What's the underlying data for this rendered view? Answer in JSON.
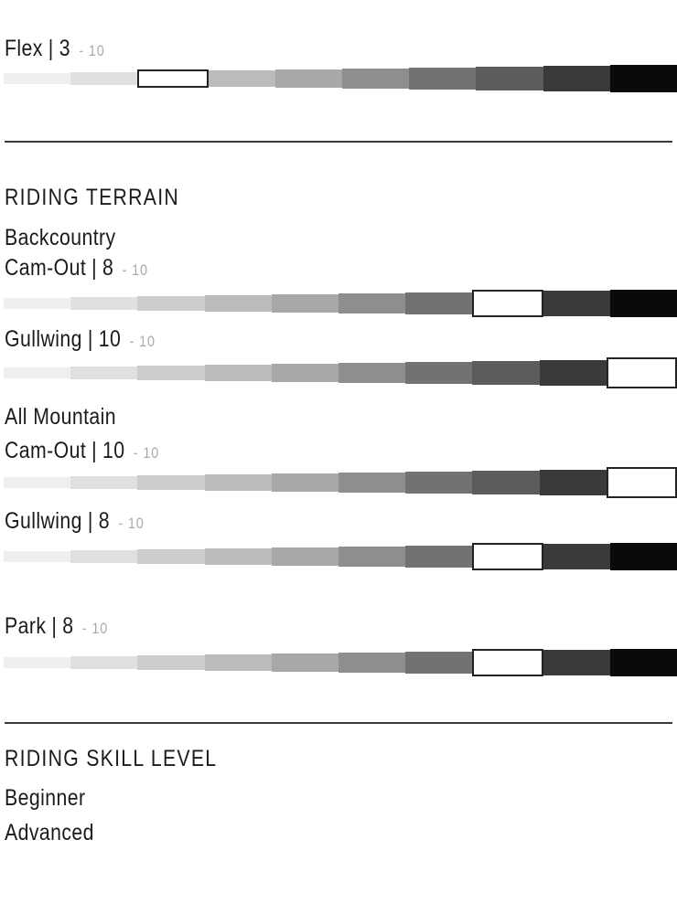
{
  "labels": {
    "terrain_heading": "RIDING TERRAIN",
    "skill_heading": "RIDING SKILL LEVEL",
    "backcountry": "Backcountry",
    "all_mountain": "All Mountain",
    "skill_levels": [
      "Beginner",
      "Advanced"
    ],
    "separator": "|",
    "scale_suffix": "- 10"
  },
  "colors": {
    "text": "#1b1b1b",
    "muted": "#ababab",
    "divider": "#3a3a3a",
    "highlight_fill": "#ffffff",
    "highlight_border": "#232323"
  },
  "bar": {
    "segments": 10,
    "palette": [
      "#efefef",
      "#e0e0e0",
      "#cdcdcd",
      "#bbbbbb",
      "#a8a8a8",
      "#8e8e8e",
      "#727272",
      "#5c5c5c",
      "#3a3a38",
      "#0a0a08"
    ]
  },
  "chart_data": {
    "type": "bar",
    "title": "",
    "scale_min": 1,
    "scale_max": 10,
    "legend_position": "none",
    "metrics": [
      {
        "group": "",
        "label": "Flex",
        "value": 3
      },
      {
        "group": "Backcountry",
        "label": "Cam-Out",
        "value": 8
      },
      {
        "group": "Backcountry",
        "label": "Gullwing",
        "value": 10
      },
      {
        "group": "All Mountain",
        "label": "Cam-Out",
        "value": 10
      },
      {
        "group": "All Mountain",
        "label": "Gullwing",
        "value": 8
      },
      {
        "group": "Park",
        "label": "Park",
        "value": 8
      }
    ],
    "skill_levels": [
      "Beginner",
      "Advanced"
    ]
  }
}
